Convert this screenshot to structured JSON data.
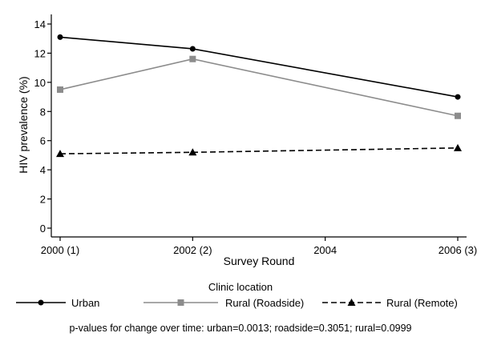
{
  "chart_data": {
    "type": "line",
    "title": "",
    "xlabel": "Survey Round",
    "ylabel": "HIV prevalence (%)",
    "x_ticks": [
      {
        "value": 2000,
        "label": "2000 (1)"
      },
      {
        "value": 2002,
        "label": "2002 (2)"
      },
      {
        "value": 2004,
        "label": "2004"
      },
      {
        "value": 2006,
        "label": "2006 (3)"
      }
    ],
    "xlim": [
      2000,
      2006
    ],
    "y_ticks": [
      0,
      2,
      4,
      6,
      8,
      10,
      12,
      14
    ],
    "ylim": [
      0,
      14
    ],
    "grid": false,
    "series": [
      {
        "name": "Urban",
        "x": [
          2000,
          2002,
          2006
        ],
        "values": [
          13.1,
          12.3,
          9.0
        ],
        "color": "#000000",
        "dash": "solid",
        "marker": "circle"
      },
      {
        "name": "Rural (Roadside)",
        "x": [
          2000,
          2002,
          2006
        ],
        "values": [
          9.5,
          11.6,
          7.7
        ],
        "color": "#8c8c8c",
        "dash": "solid",
        "marker": "square"
      },
      {
        "name": "Rural (Remote)",
        "x": [
          2000,
          2002,
          2006
        ],
        "values": [
          5.1,
          5.2,
          5.5
        ],
        "color": "#000000",
        "dash": "dashed",
        "marker": "triangle"
      }
    ],
    "legend": {
      "title": "Clinic location",
      "position": "bottom"
    },
    "footnote": "p-values for change over time: urban=0.0013; roadside=0.3051; rural=0.0999"
  }
}
